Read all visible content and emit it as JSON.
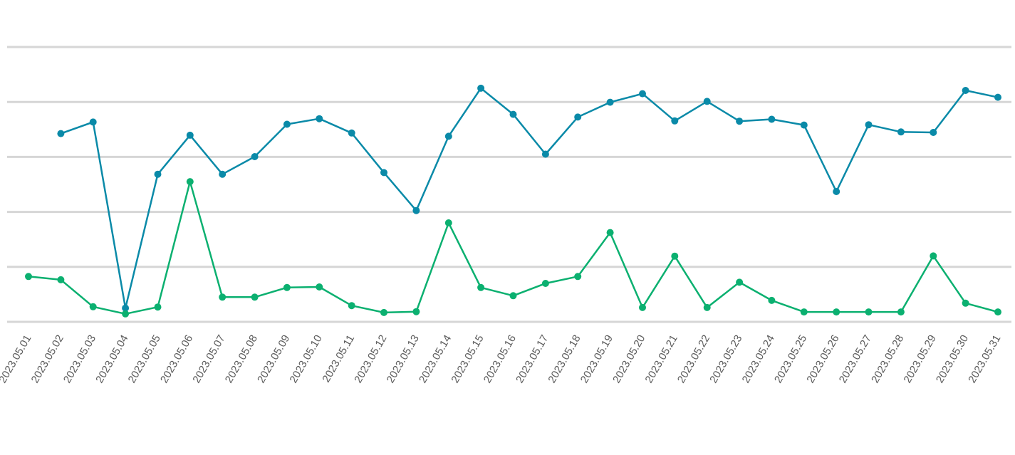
{
  "chart_data": {
    "type": "line",
    "x": [
      "2023.05.01",
      "2023.05.02",
      "2023.05.03",
      "2023.05.04",
      "2023.05.05",
      "2023.05.06",
      "2023.05.07",
      "2023.05.08",
      "2023.05.09",
      "2023.05.10",
      "2023.05.11",
      "2023.05.12",
      "2023.05.13",
      "2023.05.14",
      "2023.05.15",
      "2023.05.16",
      "2023.05.17",
      "2023.05.18",
      "2023.05.19",
      "2023.05.20",
      "2023.05.21",
      "2023.05.22",
      "2023.05.23",
      "2023.05.24",
      "2023.05.25",
      "2023.05.26",
      "2023.05.27",
      "2023.05.28",
      "2023.05.29",
      "2023.05.30",
      "2023.05.31"
    ],
    "series": [
      {
        "color": "#0a8aa8",
        "values": [
          null,
          68.5,
          72.7,
          5.0,
          53.7,
          67.9,
          53.7,
          60.1,
          71.9,
          73.9,
          68.7,
          54.3,
          40.5,
          67.5,
          85.0,
          75.5,
          61.0,
          74.5,
          79.9,
          83.0,
          73.1,
          80.2,
          73.0,
          73.7,
          71.6,
          47.4,
          71.7,
          69.1,
          68.9,
          84.2,
          81.7
        ]
      },
      {
        "color": "#0bb070",
        "values": [
          16.5,
          15.3,
          5.5,
          2.9,
          5.4,
          51.0,
          9.0,
          9.0,
          12.5,
          12.7,
          5.9,
          3.4,
          3.7,
          36.0,
          12.5,
          9.5,
          14.0,
          16.5,
          32.5,
          5.2,
          23.9,
          5.2,
          14.4,
          7.8,
          3.6,
          3.6,
          3.6,
          3.6,
          24.0,
          6.8,
          3.6
        ]
      }
    ],
    "ylim": [
      0,
      100
    ],
    "grid": true,
    "legend": "none"
  }
}
